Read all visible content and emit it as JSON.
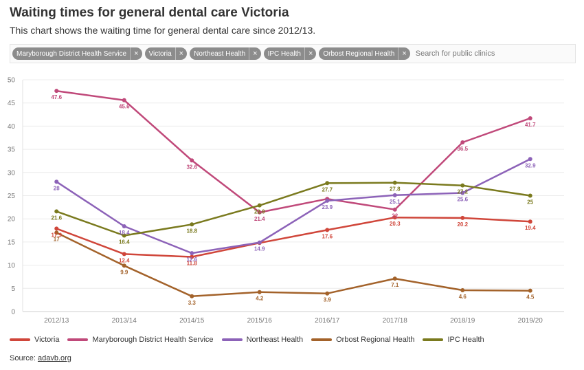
{
  "header": {
    "title": "Waiting times for general dental care Victoria",
    "subtitle": "This chart shows the waiting time for general dental care since 2012/13."
  },
  "filters": {
    "chips": [
      {
        "label": "Maryborough District Health Service",
        "remove_glyph": "×"
      },
      {
        "label": "Victoria",
        "remove_glyph": "×"
      },
      {
        "label": "Northeast Health",
        "remove_glyph": "×"
      },
      {
        "label": "IPC Health",
        "remove_glyph": "×"
      },
      {
        "label": "Orbost Regional Health",
        "remove_glyph": "×"
      }
    ],
    "search_placeholder": "Search for public clinics",
    "chip_color": "#8c8c8c"
  },
  "footer": {
    "source_prefix": "Source: ",
    "source_link": "adavb.org"
  },
  "chart_data": {
    "type": "line",
    "title": "Waiting times for general dental care Victoria",
    "subtitle": "This chart shows the waiting time for general dental care since 2012/13.",
    "xlabel": "",
    "ylabel": "",
    "categories": [
      "2012/13",
      "2013/14",
      "2014/15",
      "2015/16",
      "2016/17",
      "2017/18",
      "2018/19",
      "2019/20"
    ],
    "ylim": [
      0,
      50
    ],
    "yticks": [
      0,
      5,
      10,
      15,
      20,
      25,
      30,
      35,
      40,
      45,
      50
    ],
    "grid": true,
    "legend_position": "bottom-left",
    "series": [
      {
        "name": "Victoria",
        "color": "#d0463a",
        "values": [
          17.9,
          12.4,
          11.8,
          14.8,
          17.6,
          20.3,
          20.2,
          19.4
        ],
        "labels": [
          "17.9",
          "12.4",
          "11.8",
          "",
          "17.6",
          "20.3",
          "20.2",
          "19.4"
        ]
      },
      {
        "name": "Maryborough District Health Service",
        "color": "#c0497a",
        "values": [
          47.6,
          45.6,
          32.6,
          21.4,
          24.3,
          22,
          36.5,
          41.7
        ],
        "labels": [
          "47.6",
          "45.6",
          "32.6",
          "21.4",
          "",
          "22",
          "36.5",
          "41.7"
        ]
      },
      {
        "name": "Northeast Health",
        "color": "#8c62b8",
        "values": [
          28,
          18.4,
          12.6,
          14.9,
          23.9,
          25.1,
          25.6,
          32.9
        ],
        "labels": [
          "28",
          "18.4",
          "12.6",
          "14.9",
          "23.9",
          "25.1",
          "25.6",
          "32.9"
        ]
      },
      {
        "name": "Orbost Regional Health",
        "color": "#a3622a",
        "values": [
          17,
          9.9,
          3.3,
          4.2,
          3.9,
          7.1,
          4.6,
          4.5
        ],
        "labels": [
          "17",
          "9.9",
          "3.3",
          "4.2",
          "3.9",
          "7.1",
          "4.6",
          "4.5"
        ]
      },
      {
        "name": "IPC Health",
        "color": "#7a7a1e",
        "values": [
          21.6,
          16.4,
          18.8,
          22.9,
          27.7,
          27.8,
          27.2,
          25
        ],
        "labels": [
          "21.6",
          "16.4",
          "18.8",
          "22.9",
          "27.7",
          "27.8",
          "27.2",
          "25"
        ]
      }
    ]
  }
}
